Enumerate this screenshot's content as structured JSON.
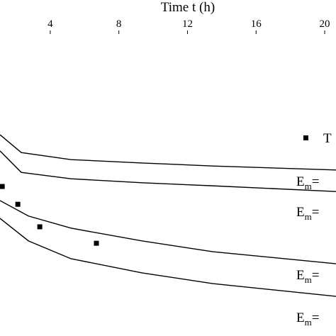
{
  "chart_data": {
    "type": "line",
    "x_label": "Time t (h)",
    "xlim": [
      1.07,
      20.66
    ],
    "xticks": [
      4,
      8,
      12,
      16,
      20
    ],
    "ylim": [
      0,
      100
    ],
    "color": "#000000",
    "series": [
      {
        "x": [
          1.07,
          2.31,
          5.21,
          9.34,
          13.47,
          20.66
        ],
        "values": [
          59.9,
          54.6,
          52.5,
          51.5,
          50.6,
          49.4
        ]
      },
      {
        "x": [
          1.07,
          2.31,
          5.21,
          9.34,
          13.47,
          20.66
        ],
        "values": [
          55.1,
          48.7,
          46.8,
          45.6,
          44.7,
          43.0
        ]
      },
      {
        "x": [
          1.07,
          2.73,
          5.21,
          9.34,
          13.47,
          20.66
        ],
        "values": [
          40.3,
          35.7,
          32.1,
          28.3,
          25.1,
          21.5
        ]
      },
      {
        "x": [
          1.07,
          2.73,
          5.21,
          9.34,
          13.47,
          20.66
        ],
        "values": [
          35.0,
          28.3,
          23.0,
          18.8,
          15.6,
          11.8
        ]
      },
      {
        "name": "T",
        "type": "scatter",
        "x": [
          1.2,
          2.11,
          3.39,
          6.69
        ],
        "values": [
          44.5,
          39.2,
          32.5,
          27.6
        ]
      }
    ],
    "annotations": [
      {
        "base": "E",
        "sub": "m",
        "tail": "="
      },
      {
        "base": "E",
        "sub": "m",
        "tail": "="
      },
      {
        "base": "E",
        "sub": "m",
        "tail": "="
      },
      {
        "base": "E",
        "sub": "m",
        "tail": "="
      }
    ]
  }
}
